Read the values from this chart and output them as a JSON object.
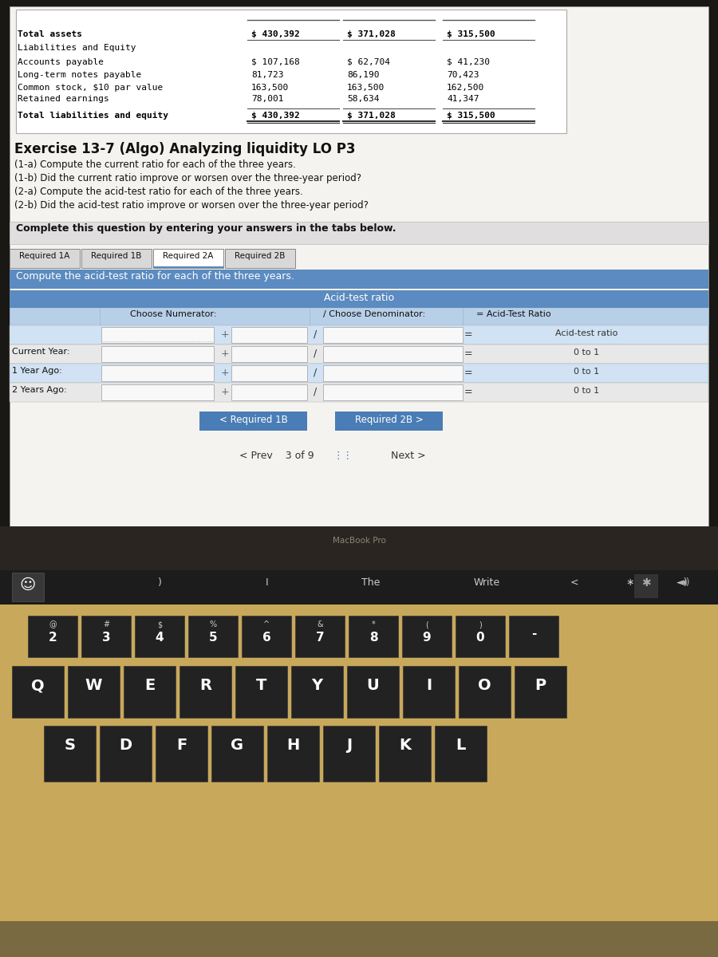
{
  "screen_bg": "#c8c0b0",
  "content_bg": "#f5f3f0",
  "table_header_bg": "#5b8bc0",
  "table_row_bg": "#b8cfe8",
  "table_alt_bg": "#d0e2f4",
  "tab_active_bg": "#ffffff",
  "tab_inactive_bg": "#d8d8d8",
  "btn_blue_bg": "#4a7db5",
  "keyboard_bg": "#c8a85a",
  "key_bg": "#222222",
  "touchbar_bg": "#111111",
  "macbook_frame": "#7a6a42",
  "bezel_bg": "#1a1814",
  "screen_frame_bg": "#2a2520",
  "financial_table": {
    "rows": [
      [
        "Total assets",
        "$ 430,392",
        "$ 371,028",
        "$ 315,500"
      ],
      [
        "Liabilities and Equity",
        "",
        "",
        ""
      ],
      [
        "Accounts payable",
        "$ 107,168",
        "$ 62,704",
        "$ 41,230"
      ],
      [
        "Long-term notes payable",
        "81,723",
        "86,190",
        "70,423"
      ],
      [
        "Common stock, $10 par value",
        "163,500",
        "163,500",
        "162,500"
      ],
      [
        "Retained earnings",
        "78,001",
        "58,634",
        "41,347"
      ],
      [
        "Total liabilities and equity",
        "$ 430,392",
        "$ 371,028",
        "$ 315,500"
      ]
    ]
  },
  "exercise_title": "Exercise 13-7 (Algo) Analyzing liquidity LO P3",
  "requirements": [
    "(1-a) Compute the current ratio for each of the three years.",
    "(1-b) Did the current ratio improve or worsen over the three-year period?",
    "(2-a) Compute the acid-test ratio for each of the three years.",
    "(2-b) Did the acid-test ratio improve or worsen over the three-year period?"
  ],
  "complete_text": "Complete this question by entering your answers in the tabs below.",
  "tabs": [
    "Required 1A",
    "Required 1B",
    "Required 2A",
    "Required 2B"
  ],
  "active_tab": 2,
  "instruction": "Compute the acid-test ratio for each of the three years.",
  "acid_test_header": "Acid-test ratio",
  "col1_header": "Choose Numerator:",
  "col2_header": "/ Choose Denominator:",
  "col3_header": "= Acid-Test Ratio",
  "row_labels": [
    "",
    "Current Year:",
    "1 Year Ago:",
    "2 Years Ago:"
  ],
  "row0_result": "Acid-test ratio",
  "row_results": [
    "0 to 1",
    "0 to 1",
    "0 to 1"
  ],
  "nav_btn1": "< Required 1B",
  "nav_btn2": "Required 2B >",
  "pagination": "< Prev    3 of 9",
  "next_text": "Next >",
  "touchbar_items": [
    ")",
    "I",
    "The",
    "Write",
    "<",
    "∗",
    "◄)"
  ],
  "kb_num": [
    "@\n2",
    "#\n3",
    "$\n4",
    "%\n5",
    "^\n6",
    "&\n7",
    "*\n8",
    "(\n9",
    ")\n0",
    "-"
  ],
  "kb_q": [
    "Q",
    "W",
    "E",
    "R",
    "T",
    "Y",
    "U",
    "I",
    "O",
    "P"
  ],
  "kb_a": [
    "S",
    "D",
    "F",
    "G",
    "H",
    "J",
    "K",
    "L"
  ],
  "macbook_label": "MacBook Pro",
  "emoji_icon": "☺"
}
